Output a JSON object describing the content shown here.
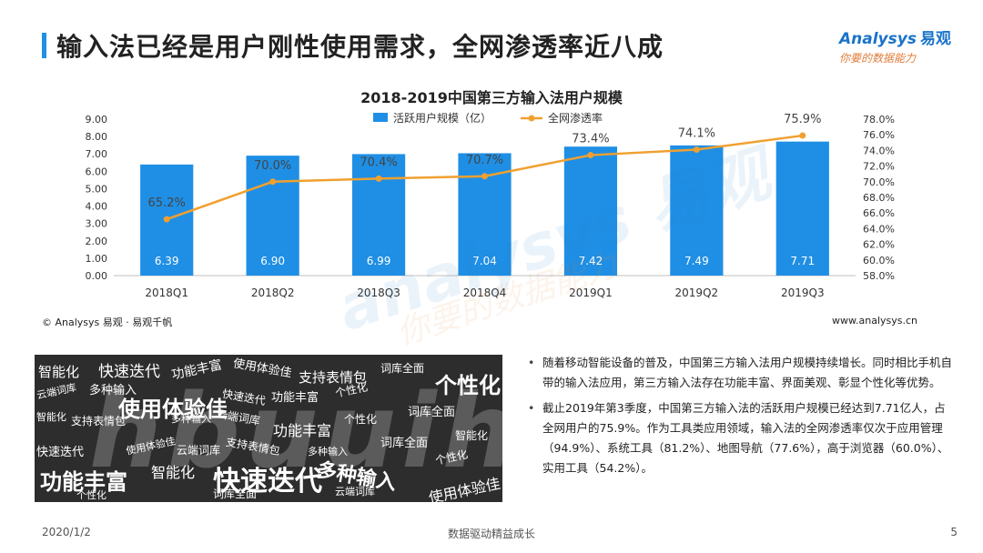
{
  "page": {
    "title": "输入法已经是用户刚性使用需求，全网渗透率近八成",
    "date": "2020/1/2",
    "footer_center": "数据驱动精益成长",
    "page_number": "5",
    "copyright": "© Analysys 易观 · 易观千帆",
    "website": "www.analysys.cn"
  },
  "logo": {
    "brand_en": "Analysys",
    "brand_cn": "易观",
    "slogan": "你要的数据能力"
  },
  "watermark": {
    "en": "analysys 易观",
    "cn": "你要的数据能力"
  },
  "colors": {
    "accent": "#1f8fe5",
    "bar": "#1f8fe5",
    "line": "#f0a030"
  },
  "chart_data": {
    "type": "bar",
    "title": "2018-2019中国第三方输入法用户规模",
    "categories": [
      "2018Q1",
      "2018Q2",
      "2018Q3",
      "2018Q4",
      "2019Q1",
      "2019Q2",
      "2019Q3"
    ],
    "series": [
      {
        "name": "活跃用户规模（亿）",
        "type": "bar",
        "axis": "left",
        "values": [
          6.39,
          6.9,
          6.99,
          7.04,
          7.42,
          7.49,
          7.71
        ],
        "labels": [
          "6.39",
          "6.90",
          "6.99",
          "7.04",
          "7.42",
          "7.49",
          "7.71"
        ]
      },
      {
        "name": "全网渗透率",
        "type": "line",
        "axis": "right",
        "values": [
          65.2,
          70.0,
          70.4,
          70.7,
          73.4,
          74.1,
          75.9
        ],
        "labels": [
          "65.2%",
          "70.0%",
          "70.4%",
          "70.7%",
          "73.4%",
          "74.1%",
          "75.9%"
        ]
      }
    ],
    "y_left": {
      "min": 0,
      "max": 9,
      "step": 1,
      "ticks": [
        "0.00",
        "1.00",
        "2.00",
        "3.00",
        "4.00",
        "5.00",
        "6.00",
        "7.00",
        "8.00",
        "9.00"
      ]
    },
    "y_right": {
      "min": 58,
      "max": 78,
      "step": 2,
      "ticks": [
        "58.0%",
        "60.0%",
        "62.0%",
        "64.0%",
        "66.0%",
        "68.0%",
        "70.0%",
        "72.0%",
        "74.0%",
        "76.0%",
        "78.0%"
      ]
    },
    "legend_position": "top",
    "grid": false
  },
  "wordcloud": {
    "background_word": "hbuuihg",
    "words": [
      "智能化",
      "快速迭代",
      "功能丰富",
      "使用体验佳",
      "支持表情包",
      "词库全面",
      "个性化",
      "云端词库",
      "多种输入",
      "使用体验佳",
      "快速迭代",
      "功能丰富",
      "个性化",
      "词库全面",
      "智能化",
      "支持表情包",
      "多种输入",
      "云端词库",
      "功能丰富",
      "个性化",
      "智能化",
      "快速迭代",
      "使用体验佳",
      "云端词库",
      "支持表情包",
      "多种输入",
      "词库全面",
      "个性化",
      "功能丰富",
      "智能化",
      "快速迭代",
      "多种输入",
      "使用体验佳",
      "个性化",
      "词库全面",
      "云端词库"
    ]
  },
  "notes": [
    "随着移动智能设备的普及，中国第三方输入法用户规模持续增长。同时相比手机自带的输入法应用，第三方输入法存在功能丰富、界面美观、彰显个性化等优势。",
    "截止2019年第3季度，中国第三方输入法的活跃用户规模已经达到7.71亿人，占全网用户的75.9%。作为工具类应用领域，输入法的全网渗透率仅次于应用管理（94.9%）、系统工具（81.2%）、地图导航（77.6%），高于浏览器（60.0%）、实用工具（54.2%）。"
  ]
}
